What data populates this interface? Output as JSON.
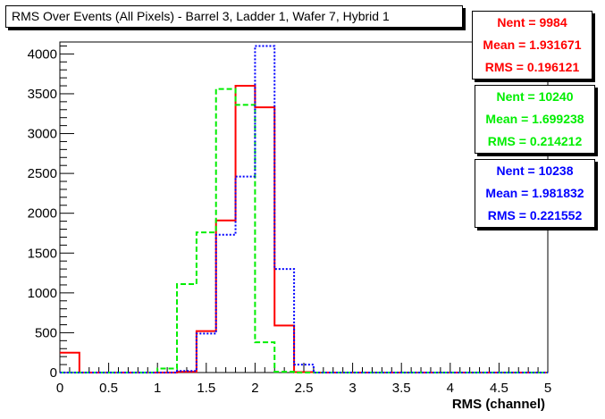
{
  "title": "RMS Over Events (All Pixels) - Barrel 3, Ladder 1, Wafer 7, Hybrid 1",
  "stats": [
    {
      "color": "#ff0000",
      "nent": "Nent = 9984",
      "mean": "Mean = 1.931671",
      "rms": "RMS = 0.196121"
    },
    {
      "color": "#00ee00",
      "nent": "Nent = 10240",
      "mean": "Mean = 1.699238",
      "rms": "RMS = 0.214212"
    },
    {
      "color": "#0000ff",
      "nent": "Nent = 10238",
      "mean": "Mean = 1.981832",
      "rms": "RMS = 0.221552"
    }
  ],
  "chart_data": {
    "type": "histogram",
    "title": "RMS Over Events (All Pixels) - Barrel 3, Ladder 1, Wafer 7, Hybrid 1",
    "xlabel": "RMS (channel)",
    "ylabel": "",
    "xlim": [
      0,
      5
    ],
    "ylim": [
      0,
      4150
    ],
    "xticks": [
      "0",
      "0.5",
      "1",
      "1.5",
      "2",
      "2.5",
      "3",
      "3.5",
      "4",
      "4.5",
      "5"
    ],
    "yticks": [
      "0",
      "500",
      "1000",
      "1500",
      "2000",
      "2500",
      "3000",
      "3500",
      "4000"
    ],
    "bins": [
      0,
      0.2,
      0.4,
      0.6,
      0.8,
      1.0,
      1.2,
      1.4,
      1.6,
      1.8,
      2.0,
      2.2,
      2.4,
      2.6,
      2.8,
      3.0,
      3.2,
      3.4,
      3.6,
      3.8,
      4.0,
      4.2,
      4.4,
      4.6,
      4.8,
      5.0
    ],
    "series": [
      {
        "color": "#ff0000",
        "style": "solid",
        "values": [
          250,
          0,
          0,
          0,
          0,
          0,
          10,
          520,
          1910,
          3600,
          3330,
          590,
          5,
          0,
          0,
          0,
          0,
          0,
          0,
          0,
          0,
          0,
          0,
          0,
          0
        ]
      },
      {
        "color": "#00ee00",
        "style": "dashed",
        "values": [
          0,
          0,
          0,
          0,
          0,
          50,
          1110,
          1760,
          3560,
          3360,
          380,
          10,
          0,
          0,
          0,
          0,
          0,
          0,
          0,
          0,
          0,
          0,
          0,
          0,
          0
        ]
      },
      {
        "color": "#0000ff",
        "style": "dotted",
        "values": [
          0,
          0,
          0,
          0,
          0,
          0,
          20,
          490,
          1730,
          2460,
          4100,
          1300,
          100,
          0,
          0,
          0,
          0,
          0,
          0,
          0,
          0,
          0,
          0,
          0,
          0
        ]
      }
    ]
  }
}
